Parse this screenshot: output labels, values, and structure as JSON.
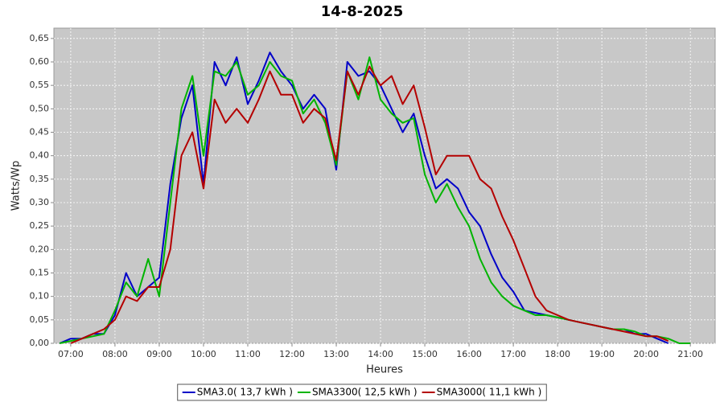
{
  "chart_data": {
    "type": "line",
    "title": "14-8-2025",
    "x_label": "Heures",
    "y_label": "Watts/Wp",
    "xlim": [
      6.62,
      21.56
    ],
    "ylim": [
      0,
      0.672
    ],
    "grid": true,
    "legend": "bottom",
    "xticks": [
      {
        "value": 7,
        "label": "07:00"
      },
      {
        "value": 8,
        "label": "08:00"
      },
      {
        "value": 9,
        "label": "09:00"
      },
      {
        "value": 10,
        "label": "10:00"
      },
      {
        "value": 11,
        "label": "11:00"
      },
      {
        "value": 12,
        "label": "12:00"
      },
      {
        "value": 13,
        "label": "13:00"
      },
      {
        "value": 14,
        "label": "14:00"
      },
      {
        "value": 15,
        "label": "15:00"
      },
      {
        "value": 16,
        "label": "16:00"
      },
      {
        "value": 17,
        "label": "17:00"
      },
      {
        "value": 18,
        "label": "18:00"
      },
      {
        "value": 19,
        "label": "19:00"
      },
      {
        "value": 20,
        "label": "20:00"
      },
      {
        "value": 21,
        "label": "21:00"
      }
    ],
    "yticks": [
      {
        "value": 0,
        "label": "0,00"
      },
      {
        "value": 0.05,
        "label": "0,05"
      },
      {
        "value": 0.1,
        "label": "0,10"
      },
      {
        "value": 0.15,
        "label": "0,15"
      },
      {
        "value": 0.2,
        "label": "0,20"
      },
      {
        "value": 0.25,
        "label": "0,25"
      },
      {
        "value": 0.3,
        "label": "0,30"
      },
      {
        "value": 0.35,
        "label": "0,35"
      },
      {
        "value": 0.4,
        "label": "0,40"
      },
      {
        "value": 0.45,
        "label": "0,45"
      },
      {
        "value": 0.5,
        "label": "0,50"
      },
      {
        "value": 0.55,
        "label": "0,55"
      },
      {
        "value": 0.6,
        "label": "0,60"
      },
      {
        "value": 0.65,
        "label": "0,65"
      }
    ],
    "x": [
      6.75,
      7.0,
      7.25,
      7.5,
      7.75,
      8.0,
      8.25,
      8.5,
      8.75,
      9.0,
      9.25,
      9.5,
      9.75,
      10.0,
      10.25,
      10.5,
      10.75,
      11.0,
      11.25,
      11.5,
      11.75,
      12.0,
      12.25,
      12.5,
      12.75,
      13.0,
      13.25,
      13.5,
      13.75,
      14.0,
      14.25,
      14.5,
      14.75,
      15.0,
      15.25,
      15.5,
      15.75,
      16.0,
      16.25,
      16.5,
      16.75,
      17.0,
      17.25,
      17.5,
      17.75,
      18.0,
      18.25,
      18.5,
      18.75,
      19.0,
      19.25,
      19.5,
      19.75,
      20.0,
      20.25,
      20.5,
      20.75,
      21.0,
      21.25
    ],
    "series": [
      {
        "name": "SMA3.0( 13,7 kWh )",
        "color": "#0000c8",
        "values": [
          0,
          0.01,
          0.01,
          0.02,
          0.02,
          0.06,
          0.15,
          0.1,
          0.12,
          0.14,
          0.34,
          0.48,
          0.55,
          0.34,
          0.6,
          0.55,
          0.61,
          0.51,
          0.56,
          0.62,
          0.58,
          0.55,
          0.5,
          0.53,
          0.5,
          0.37,
          0.6,
          0.57,
          0.58,
          0.55,
          0.5,
          0.45,
          0.49,
          0.4,
          0.33,
          0.35,
          0.33,
          0.28,
          0.25,
          0.19,
          0.14,
          0.11,
          0.07,
          0.065,
          0.06,
          0.055,
          0.05,
          0.045,
          0.04,
          0.035,
          0.03,
          0.03,
          0.02,
          0.02,
          0.01,
          0,
          null,
          null,
          null
        ]
      },
      {
        "name": "SMA3300( 12,5 kWh )",
        "color": "#00b400",
        "values": [
          0,
          0.005,
          0.01,
          0.015,
          0.02,
          0.07,
          0.13,
          0.1,
          0.18,
          0.1,
          0.3,
          0.5,
          0.57,
          0.4,
          0.58,
          0.57,
          0.6,
          0.53,
          0.55,
          0.6,
          0.57,
          0.56,
          0.49,
          0.52,
          0.47,
          0.38,
          0.58,
          0.52,
          0.61,
          0.52,
          0.49,
          0.47,
          0.48,
          0.36,
          0.3,
          0.34,
          0.29,
          0.25,
          0.18,
          0.13,
          0.1,
          0.08,
          0.07,
          0.06,
          0.06,
          0.055,
          0.05,
          0.045,
          0.04,
          0.035,
          0.03,
          0.03,
          0.025,
          0.015,
          0.015,
          0.01,
          0,
          0,
          null
        ]
      },
      {
        "name": "SMA3000( 11,1 kWh )",
        "color": "#b40000",
        "values": [
          null,
          0,
          0.01,
          0.02,
          0.03,
          0.05,
          0.1,
          0.09,
          0.12,
          0.12,
          0.2,
          0.4,
          0.45,
          0.33,
          0.52,
          0.47,
          0.5,
          0.47,
          0.52,
          0.58,
          0.53,
          0.53,
          0.47,
          0.5,
          0.48,
          0.39,
          0.58,
          0.53,
          0.59,
          0.55,
          0.57,
          0.51,
          0.55,
          0.46,
          0.36,
          0.4,
          0.4,
          0.4,
          0.35,
          0.33,
          0.27,
          0.22,
          0.16,
          0.1,
          0.07,
          0.06,
          0.05,
          0.045,
          0.04,
          0.035,
          0.03,
          0.025,
          0.02,
          0.015,
          0.015,
          0.005,
          null,
          null,
          null
        ]
      }
    ]
  }
}
